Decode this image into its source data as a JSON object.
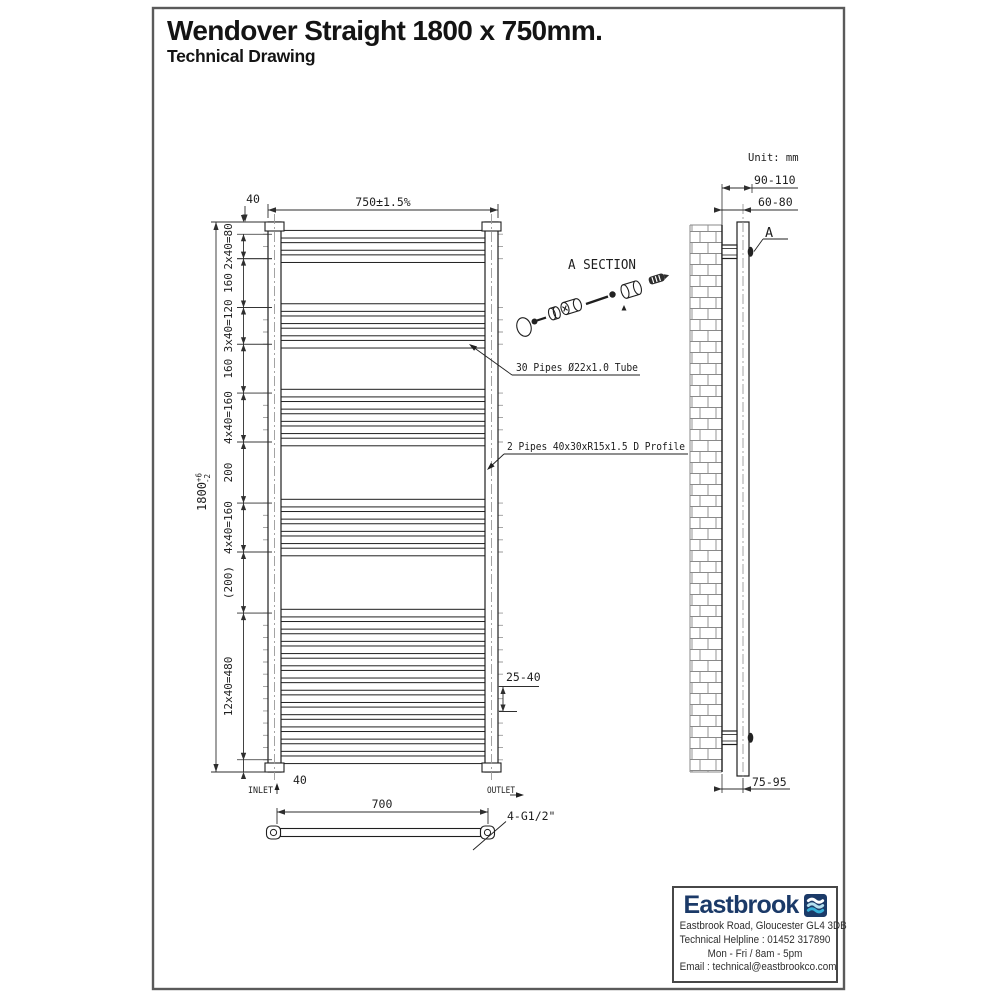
{
  "page": {
    "title": "Wendover Straight 1800 x 750mm.",
    "subtitle": "Technical Drawing",
    "unit_note": "Unit: mm"
  },
  "colors": {
    "line": "#1f1f1f",
    "dim": "#2e2e2e",
    "centerline": "#9a9a9a",
    "brand_navy": "#1b3a68",
    "logo_cyan": "#37b0d8",
    "logo_pale": "#b5e0f0",
    "logo_white": "#ffffff"
  },
  "front_view": {
    "width_dim": "750±1.5%",
    "top_offset_dim": "40",
    "bottom_offset_dim": "40",
    "height_dim": {
      "value": "1800",
      "plus": "+6",
      "minus": "-2"
    },
    "pipe_note": "30 Pipes Ø22x1.0 Tube",
    "collector_note": "2 Pipes 40x30xR15x1.5 D Profile",
    "hang_gap_dim": "25-40",
    "inlet_label": "INLET",
    "outlet_label": "OUTLET",
    "total_height_mm": 1800,
    "pipe_groups": [
      {
        "label": "2x40=80",
        "from_mm": 40,
        "to_mm": 120,
        "pipes_mm": [
          40,
          80,
          120
        ]
      },
      {
        "label": "160",
        "from_mm": 120,
        "to_mm": 280,
        "pipes_mm": []
      },
      {
        "label": "3x40=120",
        "from_mm": 280,
        "to_mm": 400,
        "pipes_mm": [
          280,
          320,
          360,
          400
        ]
      },
      {
        "label": "160",
        "from_mm": 400,
        "to_mm": 560,
        "pipes_mm": []
      },
      {
        "label": "4x40=160",
        "from_mm": 560,
        "to_mm": 720,
        "pipes_mm": [
          560,
          600,
          640,
          680,
          720
        ]
      },
      {
        "label": "200",
        "from_mm": 720,
        "to_mm": 920,
        "pipes_mm": []
      },
      {
        "label": "4x40=160",
        "from_mm": 920,
        "to_mm": 1080,
        "pipes_mm": [
          920,
          960,
          1000,
          1040,
          1080
        ]
      },
      {
        "label": "(200)",
        "from_mm": 1080,
        "to_mm": 1280,
        "pipes_mm": []
      },
      {
        "label": "12x40=480",
        "from_mm": 1280,
        "to_mm": 1760,
        "pipes_mm": [
          1280,
          1320,
          1360,
          1400,
          1440,
          1480,
          1520,
          1560,
          1600,
          1640,
          1680,
          1720,
          1760
        ]
      }
    ]
  },
  "bottom_view": {
    "centres_dim": "700",
    "tapping_label": "4-G1/2\""
  },
  "section_view": {
    "title": "A SECTION"
  },
  "side_view": {
    "proj_max_dim": "90-110",
    "proj_mid_dim": "60-80",
    "proj_bottom_dim": "75-95",
    "detail_label": "A"
  },
  "logo_box": {
    "brand": "Eastbrook",
    "address": "Eastbrook Road, Gloucester GL4 3DB",
    "helpline": "Technical Helpline : 01452 317890",
    "hours": "Mon - Fri / 8am - 5pm",
    "email": "Email : technical@eastbrookco.com"
  }
}
